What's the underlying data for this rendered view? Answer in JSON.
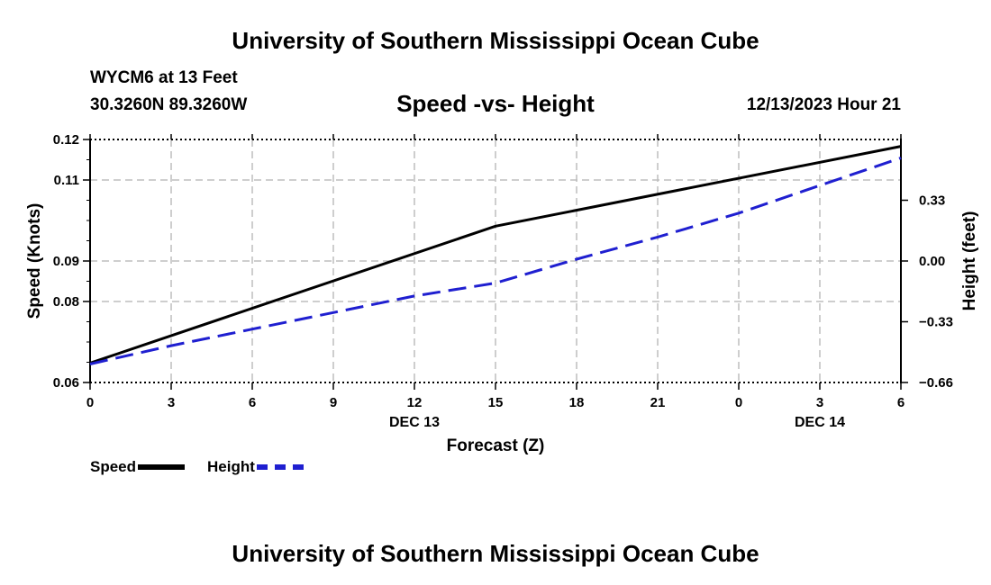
{
  "header": {
    "title": "University of Southern Mississippi Ocean Cube",
    "station": "WYCM6 at 13 Feet",
    "coords": "30.3260N  89.3260W",
    "valid_time": "12/13/2023 Hour 21"
  },
  "footer": {
    "title": "University of Southern Mississippi Ocean Cube"
  },
  "legend": {
    "speed_label": "Speed",
    "height_label": "Height"
  },
  "colors": {
    "speed": "#000000",
    "height": "#1f1fd0",
    "grid": "#bdbdbd"
  },
  "chart_data": {
    "type": "line",
    "title": "Speed -vs- Height",
    "xlabel": "Forecast (Z)",
    "ylabel": "Speed (Knots)",
    "y2label": "Height (feet)",
    "x": [
      0,
      3,
      6,
      9,
      12,
      15,
      18,
      21,
      24,
      27,
      30
    ],
    "x_tick_labels": [
      "0",
      "3",
      "6",
      "9",
      "12",
      "15",
      "18",
      "21",
      "0",
      "3",
      "6"
    ],
    "date_labels": [
      {
        "x": 12,
        "label": "DEC 13"
      },
      {
        "x": 27,
        "label": "DEC 14"
      }
    ],
    "xlim": [
      0,
      30
    ],
    "ylim": [
      0.06,
      0.12
    ],
    "y_ticks": [
      0.06,
      0.08,
      0.09,
      0.11,
      0.12
    ],
    "y_tick_labels": [
      "0.06",
      "0.08",
      "0.09",
      "0.11",
      "0.12"
    ],
    "y2lim": [
      -0.66,
      0.66
    ],
    "y2_ticks": [
      0.33,
      0.0,
      -0.33,
      -0.66
    ],
    "y2_tick_labels": [
      "0.33",
      "0.00",
      "−0.33",
      "−0.66"
    ],
    "grid": true,
    "series": [
      {
        "name": "Speed",
        "axis": "left",
        "style": "solid",
        "points": [
          [
            0,
            0.0648
          ],
          [
            15,
            0.0986
          ],
          [
            30,
            0.1183
          ]
        ]
      },
      {
        "name": "Height",
        "axis": "right",
        "style": "dashed",
        "points": [
          [
            0,
            -0.56
          ],
          [
            3,
            -0.46
          ],
          [
            6,
            -0.37
          ],
          [
            9,
            -0.28
          ],
          [
            12,
            -0.19
          ],
          [
            15,
            -0.12
          ],
          [
            18,
            0.01
          ],
          [
            21,
            0.13
          ],
          [
            24,
            0.26
          ],
          [
            27,
            0.41
          ],
          [
            30,
            0.56
          ]
        ]
      }
    ]
  }
}
